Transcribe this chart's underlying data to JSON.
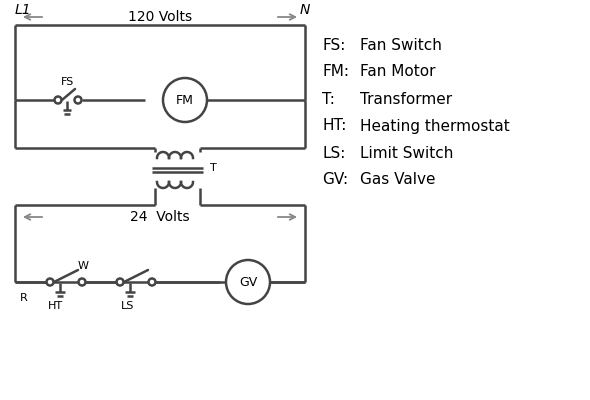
{
  "bg_color": "#ffffff",
  "line_color": "#444444",
  "arrow_color": "#888888",
  "text_color": "#000000",
  "legend_items": [
    [
      "FS:",
      "Fan Switch"
    ],
    [
      "FM:",
      "Fan Motor"
    ],
    [
      "T:",
      "Transformer"
    ],
    [
      "HT:",
      "Heating thermostat"
    ],
    [
      "LS:",
      "Limit Switch"
    ],
    [
      "GV:",
      "Gas Valve"
    ]
  ],
  "labels": {
    "L1": "L1",
    "N": "N",
    "FS": "FS",
    "FM": "FM",
    "T": "T",
    "R": "R",
    "W": "W",
    "HT": "HT",
    "LS": "LS",
    "GV": "GV",
    "v120": "120 Volts",
    "v24": "24  Volts"
  }
}
